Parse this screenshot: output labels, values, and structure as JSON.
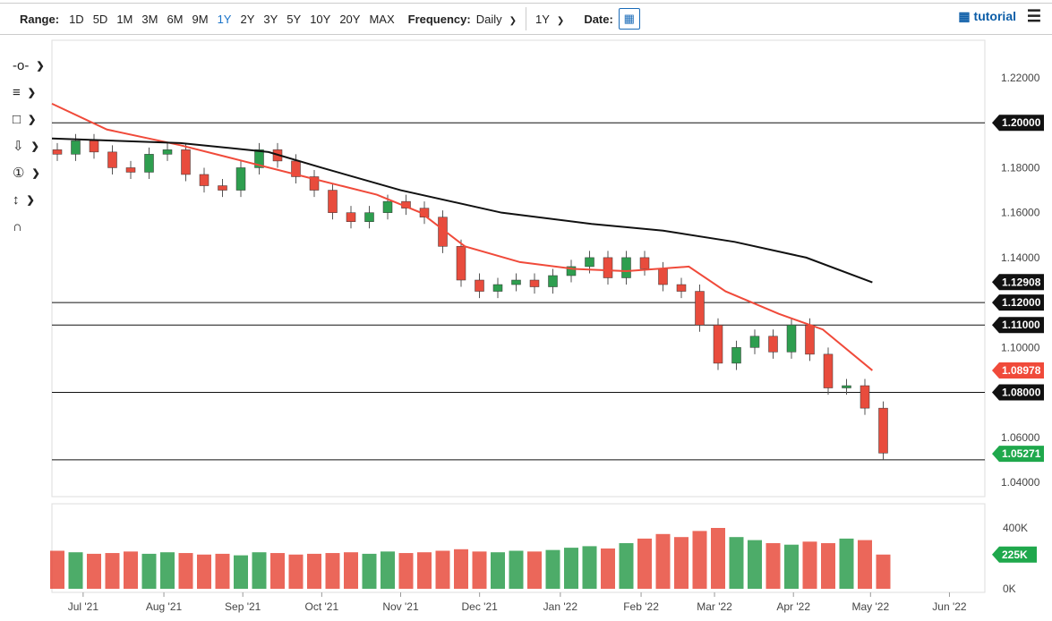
{
  "toolbar": {
    "range_label": "Range:",
    "ranges": [
      "1D",
      "5D",
      "1M",
      "3M",
      "6M",
      "9M",
      "1Y",
      "2Y",
      "3Y",
      "5Y",
      "10Y",
      "20Y",
      "MAX"
    ],
    "active_range": "1Y",
    "frequency_label": "Frequency:",
    "frequency": "Daily",
    "period": "1Y",
    "date_label": "Date:",
    "tutorial": "tutorial"
  },
  "tools": [
    "line-tool",
    "trend-tool",
    "rectangle-tool",
    "arrow-tool",
    "number-tool",
    "measure-tool",
    "magnet-tool"
  ],
  "colors": {
    "up": "#2e9e4f",
    "down": "#e84c3d",
    "ma50": "#f04a3a",
    "ma200": "#111111",
    "last": "#1fa84c"
  },
  "chart_data": {
    "type": "candlestick",
    "x_unit": "week index from Jun 21 2021",
    "closes": [
      1.186,
      1.192,
      1.187,
      1.18,
      1.178,
      1.186,
      1.188,
      1.177,
      1.172,
      1.17,
      1.18,
      1.188,
      1.183,
      1.176,
      1.17,
      1.16,
      1.156,
      1.16,
      1.165,
      1.162,
      1.158,
      1.145,
      1.13,
      1.125,
      1.128,
      1.13,
      1.127,
      1.132,
      1.136,
      1.14,
      1.131,
      1.14,
      1.135,
      1.128,
      1.125,
      1.11,
      1.093,
      1.1,
      1.105,
      1.098,
      1.11,
      1.097,
      1.082,
      1.083,
      1.073,
      1.053
    ],
    "volumes_k": [
      250,
      240,
      230,
      235,
      245,
      230,
      240,
      235,
      225,
      230,
      220,
      240,
      235,
      225,
      230,
      235,
      240,
      230,
      245,
      235,
      240,
      250,
      260,
      245,
      240,
      250,
      245,
      255,
      270,
      280,
      265,
      300,
      330,
      360,
      340,
      380,
      400,
      340,
      320,
      300,
      290,
      310,
      300,
      330,
      320,
      225
    ],
    "ma50": [
      [
        0,
        1.2085
      ],
      [
        3,
        1.197
      ],
      [
        7,
        1.19
      ],
      [
        10.4,
        1.183
      ],
      [
        13.3,
        1.177
      ],
      [
        17.7,
        1.168
      ],
      [
        20.1,
        1.16
      ],
      [
        22.5,
        1.145
      ],
      [
        25.5,
        1.138
      ],
      [
        28.4,
        1.135
      ],
      [
        31.3,
        1.134
      ],
      [
        34.7,
        1.136
      ],
      [
        36.7,
        1.125
      ],
      [
        39.6,
        1.115
      ],
      [
        42,
        1.108
      ],
      [
        44.7,
        1.0898
      ]
    ],
    "ma200": [
      [
        0,
        1.193
      ],
      [
        7,
        1.191
      ],
      [
        11.8,
        1.187
      ],
      [
        14.7,
        1.18
      ],
      [
        19,
        1.17
      ],
      [
        24.5,
        1.16
      ],
      [
        29.4,
        1.155
      ],
      [
        33.3,
        1.152
      ],
      [
        37.2,
        1.147
      ],
      [
        41.1,
        1.14
      ],
      [
        44.7,
        1.129
      ]
    ],
    "hlines": [
      1.2,
      1.12,
      1.11,
      1.08,
      1.05
    ],
    "price_ticks": [
      "1.22000",
      "1.20000",
      "1.18000",
      "1.16000",
      "1.14000",
      "1.12000",
      "1.10000",
      "1.08000",
      "1.06000",
      "1.04000"
    ],
    "price_tick_values": [
      1.22,
      1.2,
      1.18,
      1.16,
      1.14,
      1.12,
      1.1,
      1.08,
      1.06,
      1.04
    ],
    "ylim": [
      1.04,
      1.22
    ],
    "price_labels": [
      {
        "text": "1.20000",
        "value": 1.2,
        "color": "#111111"
      },
      {
        "text": "1.12908",
        "value": 1.12908,
        "color": "#111111"
      },
      {
        "text": "1.12000",
        "value": 1.12,
        "color": "#111111"
      },
      {
        "text": "1.11000",
        "value": 1.11,
        "color": "#111111"
      },
      {
        "text": "1.08978",
        "value": 1.08978,
        "color": "#f04a3a"
      },
      {
        "text": "1.08000",
        "value": 1.08,
        "color": "#111111"
      },
      {
        "text": "1.05271",
        "value": 1.05271,
        "color": "#1fa84c"
      }
    ],
    "volume_ticks": [
      "400K",
      "0K"
    ],
    "volume_last_label": "225K",
    "x_ticks": [
      "Jul '21",
      "Aug '21",
      "Sep '21",
      "Oct '21",
      "Nov '21",
      "Dec '21",
      "Jan '22",
      "Feb '22",
      "Mar '22",
      "Apr '22",
      "May '22",
      "Jun '22"
    ],
    "x_tick_weeks": [
      1.7,
      6.1,
      10.4,
      14.7,
      19,
      23.3,
      27.7,
      32.1,
      36.1,
      40.4,
      44.6,
      48.9
    ]
  }
}
